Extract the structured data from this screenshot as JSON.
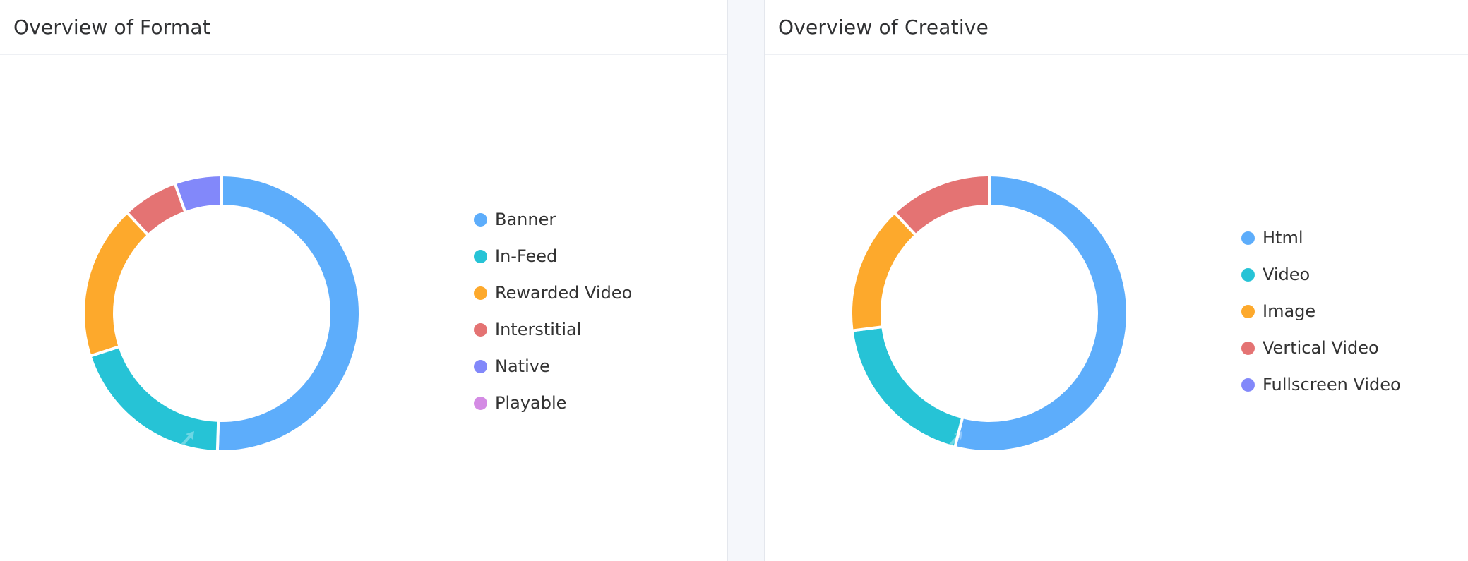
{
  "colors": {
    "blue": "#5dadfb",
    "teal": "#26c3d6",
    "orange": "#fda92c",
    "red": "#e47373",
    "indigo": "#8288fa",
    "violet": "#d48be4"
  },
  "format_panel": {
    "title": "Overview of Format"
  },
  "creative_panel": {
    "title": "Overview of Creative"
  },
  "chart_data": [
    {
      "type": "pie",
      "variant": "donut",
      "title": "Overview of Format",
      "legend_position": "right",
      "series": [
        {
          "name": "Banner",
          "value": 50.5,
          "color": "#5dadfb"
        },
        {
          "name": "In-Feed",
          "value": 19.5,
          "color": "#26c3d6"
        },
        {
          "name": "Rewarded Video",
          "value": 18,
          "color": "#fda92c"
        },
        {
          "name": "Interstitial",
          "value": 6.5,
          "color": "#e47373"
        },
        {
          "name": "Native",
          "value": 5.5,
          "color": "#8288fa"
        },
        {
          "name": "Playable",
          "value": 0,
          "color": "#d48be4"
        }
      ]
    },
    {
      "type": "pie",
      "variant": "donut",
      "title": "Overview of Creative",
      "legend_position": "right",
      "series": [
        {
          "name": "Html",
          "value": 54,
          "color": "#5dadfb"
        },
        {
          "name": "Video",
          "value": 19,
          "color": "#26c3d6"
        },
        {
          "name": "Image",
          "value": 15,
          "color": "#fda92c"
        },
        {
          "name": "Vertical Video",
          "value": 12,
          "color": "#e47373"
        },
        {
          "name": "Fullscreen Video",
          "value": 0,
          "color": "#8288fa"
        }
      ]
    }
  ]
}
